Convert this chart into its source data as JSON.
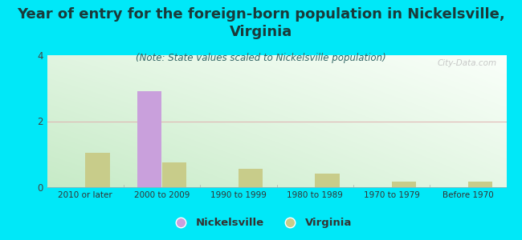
{
  "title": "Year of entry for the foreign-born population in Nickelsville,\nVirginia",
  "subtitle": "(Note: State values scaled to Nickelsville population)",
  "categories": [
    "2010 or later",
    "2000 to 2009",
    "1990 to 1999",
    "1980 to 1989",
    "1970 to 1979",
    "Before 1970"
  ],
  "nickelsville_values": [
    0,
    2.9,
    0,
    0,
    0,
    0
  ],
  "virginia_values": [
    1.05,
    0.75,
    0.55,
    0.42,
    0.18,
    0.17
  ],
  "nickelsville_color": "#c9a0dc",
  "virginia_color": "#c8cc8a",
  "background_color": "#00e8f8",
  "ylim": [
    0,
    4
  ],
  "yticks": [
    0,
    2,
    4
  ],
  "bar_width": 0.32,
  "title_fontsize": 13,
  "subtitle_fontsize": 8.5,
  "watermark": "City-Data.com",
  "grid_color": "#dddddd"
}
